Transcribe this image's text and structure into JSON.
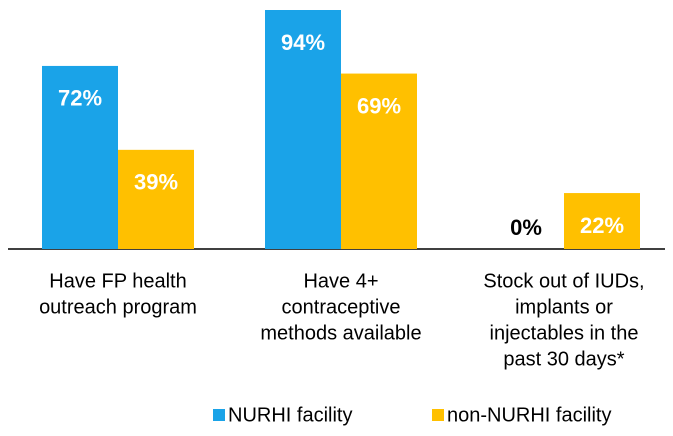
{
  "chart_data": {
    "type": "bar",
    "categories": [
      [
        "Have FP health",
        "outreach program"
      ],
      [
        "Have 4+",
        "contraceptive",
        "methods available"
      ],
      [
        "Stock out of IUDs,",
        "implants or",
        "injectables in the",
        "past 30 days*"
      ]
    ],
    "series": [
      {
        "name": "NURHI facility",
        "color": "#1aa3e8",
        "values": [
          72,
          94,
          0
        ],
        "value_labels": [
          "72%",
          "94%",
          "0%"
        ]
      },
      {
        "name": "non-NURHI facility",
        "color": "#ffc000",
        "values": [
          39,
          69,
          22
        ],
        "value_labels": [
          "39%",
          "69%",
          "22%"
        ]
      }
    ]
  }
}
